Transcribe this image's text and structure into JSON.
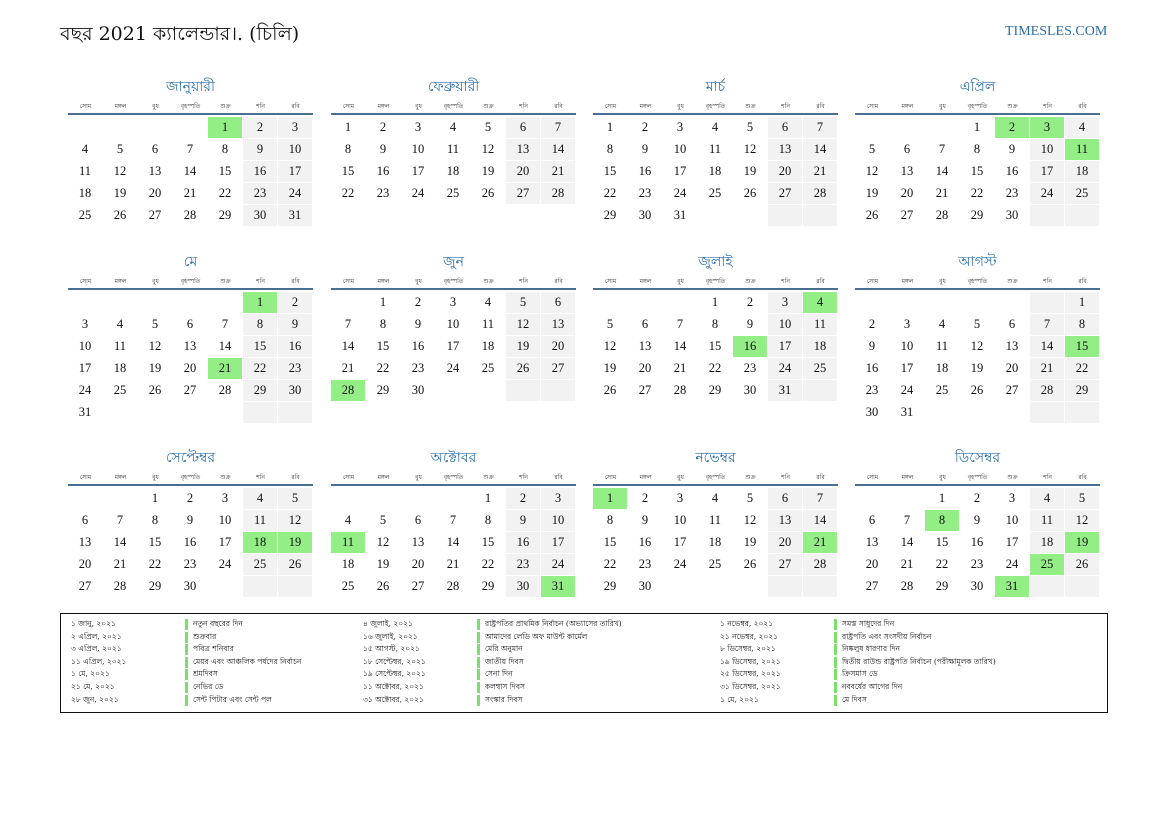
{
  "header": {
    "title": "বছর 2021 ক্যালেন্ডার।. (চিলি)",
    "site": "TIMESLES.COM"
  },
  "weekdays": [
    "সোম",
    "মঙ্গল",
    "বুধ",
    "বৃহস্পতি",
    "শুক্র",
    "শনি",
    "রবি"
  ],
  "colors": {
    "accent": "#2a6fa8",
    "holiday": "#93ee85",
    "weekend": "#f2f2f2",
    "rule": "#4a6f91"
  },
  "months": [
    {
      "name": "জানুয়ারী",
      "offset": 4,
      "days": 31,
      "holidays": [
        1
      ]
    },
    {
      "name": "ফেব্রুয়ারী",
      "offset": 0,
      "days": 28,
      "holidays": []
    },
    {
      "name": "মার্চ",
      "offset": 0,
      "days": 31,
      "holidays": []
    },
    {
      "name": "এপ্রিল",
      "offset": 3,
      "days": 30,
      "holidays": [
        2,
        3,
        11
      ]
    },
    {
      "name": "মে",
      "offset": 5,
      "days": 31,
      "holidays": [
        1,
        21
      ]
    },
    {
      "name": "জুন",
      "offset": 1,
      "days": 30,
      "holidays": [
        28
      ]
    },
    {
      "name": "জুলাই",
      "offset": 3,
      "days": 31,
      "holidays": [
        4,
        16
      ]
    },
    {
      "name": "আগস্ট",
      "offset": 6,
      "days": 31,
      "holidays": [
        15
      ]
    },
    {
      "name": "সেপ্টেম্বর",
      "offset": 2,
      "days": 30,
      "holidays": [
        18,
        19
      ]
    },
    {
      "name": "অক্টোবর",
      "offset": 4,
      "days": 31,
      "holidays": [
        11,
        31
      ]
    },
    {
      "name": "নভেম্বর",
      "offset": 0,
      "days": 30,
      "holidays": [
        1,
        21
      ]
    },
    {
      "name": "ডিসেম্বর",
      "offset": 2,
      "days": 31,
      "holidays": [
        8,
        19,
        25,
        31
      ]
    }
  ],
  "holiday_list": [
    [
      {
        "date": "১ জানু, ২০২১",
        "name": "নতুন বছরের দিন"
      },
      {
        "date": "২ এপ্রিল, ২০২১",
        "name": "শুক্রবার"
      },
      {
        "date": "৩ এপ্রিল, ২০২১",
        "name": "পবিত্র শনিবার"
      },
      {
        "date": "১১ এপ্রিল, ২০২১",
        "name": "মেয়র এবং আঞ্চলিক পৰ্ষদের নির্বাচন"
      },
      {
        "date": "১ মে, ২০২১",
        "name": "শ্রমদিবস"
      },
      {
        "date": "২১ মে, ২০২১",
        "name": "নেভির ডে"
      },
      {
        "date": "২৮ জুন, ২০২১",
        "name": "সেন্ট পিটার এবং সেন্ট পল"
      }
    ],
    [
      {
        "date": "৪ জুলাই, ২০২১",
        "name": "রাষ্ট্রপতির প্রাথমিক নির্বাচন (অভ্যাসের তারিখ)"
      },
      {
        "date": "১৬ জুলাই, ২০২১",
        "name": "আমাদের লেডি অফ মাউন্ট কার্মেল"
      },
      {
        "date": "১৫ আগস্ট, ২০২১",
        "name": "মেরি অনুমান"
      },
      {
        "date": "১৮ সেপ্টেম্বর, ২০২১",
        "name": "জাতীয় দিবস"
      },
      {
        "date": "১৯ সেপ্টেম্বর, ২০২১",
        "name": "সেনা দিন"
      },
      {
        "date": "১১ অক্টোবর, ২০২১",
        "name": "কলম্বাস দিবস"
      },
      {
        "date": "৩১ অক্টোবর, ২০২১",
        "name": "সংস্কার দিবস"
      }
    ],
    [
      {
        "date": "১ নভেম্বর, ২০২১",
        "name": "সমস্ত সাধুদের দিন"
      },
      {
        "date": "২১ নভেম্বর, ২০২১",
        "name": "রাষ্ট্রপতি এবং সংসদীয় নির্বাচন"
      },
      {
        "date": "৮ ডিসেম্বর, ২০২১",
        "name": "নিষ্কলুষ ধারণার দিন"
      },
      {
        "date": "১৯ ডিসেম্বর, ২০২১",
        "name": "দ্বিতীয় রাউন্ড রাষ্ট্রপতি নির্বাচন (পরীক্ষামূলক তারিখ)"
      },
      {
        "date": "২৫ ডিসেম্বর, ২০২১",
        "name": "ক্রিসমাস ডে"
      },
      {
        "date": "৩১ ডিসেম্বর, ২০২১",
        "name": "নববর্ষের আগের দিন"
      },
      {
        "date": "১ মে, ২০২১",
        "name": "মে দিবস"
      }
    ]
  ]
}
